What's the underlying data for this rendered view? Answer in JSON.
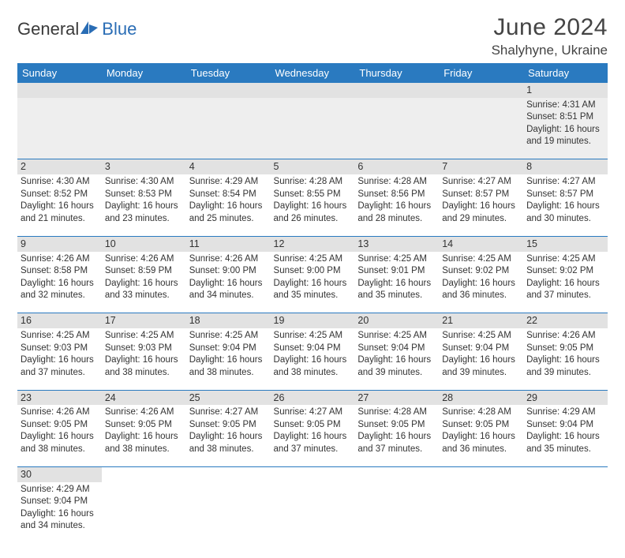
{
  "brand": {
    "part1": "General",
    "part2": "Blue"
  },
  "title": "June 2024",
  "location": "Shalyhyne, Ukraine",
  "colors": {
    "header_bg": "#2a7ac0",
    "header_fg": "#ffffff",
    "daynum_bg": "#e2e2e2",
    "rule": "#2a7ac0",
    "brand_blue": "#2a6db5"
  },
  "weekdays": [
    "Sunday",
    "Monday",
    "Tuesday",
    "Wednesday",
    "Thursday",
    "Friday",
    "Saturday"
  ],
  "weeks": [
    [
      null,
      null,
      null,
      null,
      null,
      null,
      {
        "n": "1",
        "sr": "Sunrise: 4:31 AM",
        "ss": "Sunset: 8:51 PM",
        "d1": "Daylight: 16 hours",
        "d2": "and 19 minutes."
      }
    ],
    [
      {
        "n": "2",
        "sr": "Sunrise: 4:30 AM",
        "ss": "Sunset: 8:52 PM",
        "d1": "Daylight: 16 hours",
        "d2": "and 21 minutes."
      },
      {
        "n": "3",
        "sr": "Sunrise: 4:30 AM",
        "ss": "Sunset: 8:53 PM",
        "d1": "Daylight: 16 hours",
        "d2": "and 23 minutes."
      },
      {
        "n": "4",
        "sr": "Sunrise: 4:29 AM",
        "ss": "Sunset: 8:54 PM",
        "d1": "Daylight: 16 hours",
        "d2": "and 25 minutes."
      },
      {
        "n": "5",
        "sr": "Sunrise: 4:28 AM",
        "ss": "Sunset: 8:55 PM",
        "d1": "Daylight: 16 hours",
        "d2": "and 26 minutes."
      },
      {
        "n": "6",
        "sr": "Sunrise: 4:28 AM",
        "ss": "Sunset: 8:56 PM",
        "d1": "Daylight: 16 hours",
        "d2": "and 28 minutes."
      },
      {
        "n": "7",
        "sr": "Sunrise: 4:27 AM",
        "ss": "Sunset: 8:57 PM",
        "d1": "Daylight: 16 hours",
        "d2": "and 29 minutes."
      },
      {
        "n": "8",
        "sr": "Sunrise: 4:27 AM",
        "ss": "Sunset: 8:57 PM",
        "d1": "Daylight: 16 hours",
        "d2": "and 30 minutes."
      }
    ],
    [
      {
        "n": "9",
        "sr": "Sunrise: 4:26 AM",
        "ss": "Sunset: 8:58 PM",
        "d1": "Daylight: 16 hours",
        "d2": "and 32 minutes."
      },
      {
        "n": "10",
        "sr": "Sunrise: 4:26 AM",
        "ss": "Sunset: 8:59 PM",
        "d1": "Daylight: 16 hours",
        "d2": "and 33 minutes."
      },
      {
        "n": "11",
        "sr": "Sunrise: 4:26 AM",
        "ss": "Sunset: 9:00 PM",
        "d1": "Daylight: 16 hours",
        "d2": "and 34 minutes."
      },
      {
        "n": "12",
        "sr": "Sunrise: 4:25 AM",
        "ss": "Sunset: 9:00 PM",
        "d1": "Daylight: 16 hours",
        "d2": "and 35 minutes."
      },
      {
        "n": "13",
        "sr": "Sunrise: 4:25 AM",
        "ss": "Sunset: 9:01 PM",
        "d1": "Daylight: 16 hours",
        "d2": "and 35 minutes."
      },
      {
        "n": "14",
        "sr": "Sunrise: 4:25 AM",
        "ss": "Sunset: 9:02 PM",
        "d1": "Daylight: 16 hours",
        "d2": "and 36 minutes."
      },
      {
        "n": "15",
        "sr": "Sunrise: 4:25 AM",
        "ss": "Sunset: 9:02 PM",
        "d1": "Daylight: 16 hours",
        "d2": "and 37 minutes."
      }
    ],
    [
      {
        "n": "16",
        "sr": "Sunrise: 4:25 AM",
        "ss": "Sunset: 9:03 PM",
        "d1": "Daylight: 16 hours",
        "d2": "and 37 minutes."
      },
      {
        "n": "17",
        "sr": "Sunrise: 4:25 AM",
        "ss": "Sunset: 9:03 PM",
        "d1": "Daylight: 16 hours",
        "d2": "and 38 minutes."
      },
      {
        "n": "18",
        "sr": "Sunrise: 4:25 AM",
        "ss": "Sunset: 9:04 PM",
        "d1": "Daylight: 16 hours",
        "d2": "and 38 minutes."
      },
      {
        "n": "19",
        "sr": "Sunrise: 4:25 AM",
        "ss": "Sunset: 9:04 PM",
        "d1": "Daylight: 16 hours",
        "d2": "and 38 minutes."
      },
      {
        "n": "20",
        "sr": "Sunrise: 4:25 AM",
        "ss": "Sunset: 9:04 PM",
        "d1": "Daylight: 16 hours",
        "d2": "and 39 minutes."
      },
      {
        "n": "21",
        "sr": "Sunrise: 4:25 AM",
        "ss": "Sunset: 9:04 PM",
        "d1": "Daylight: 16 hours",
        "d2": "and 39 minutes."
      },
      {
        "n": "22",
        "sr": "Sunrise: 4:26 AM",
        "ss": "Sunset: 9:05 PM",
        "d1": "Daylight: 16 hours",
        "d2": "and 39 minutes."
      }
    ],
    [
      {
        "n": "23",
        "sr": "Sunrise: 4:26 AM",
        "ss": "Sunset: 9:05 PM",
        "d1": "Daylight: 16 hours",
        "d2": "and 38 minutes."
      },
      {
        "n": "24",
        "sr": "Sunrise: 4:26 AM",
        "ss": "Sunset: 9:05 PM",
        "d1": "Daylight: 16 hours",
        "d2": "and 38 minutes."
      },
      {
        "n": "25",
        "sr": "Sunrise: 4:27 AM",
        "ss": "Sunset: 9:05 PM",
        "d1": "Daylight: 16 hours",
        "d2": "and 38 minutes."
      },
      {
        "n": "26",
        "sr": "Sunrise: 4:27 AM",
        "ss": "Sunset: 9:05 PM",
        "d1": "Daylight: 16 hours",
        "d2": "and 37 minutes."
      },
      {
        "n": "27",
        "sr": "Sunrise: 4:28 AM",
        "ss": "Sunset: 9:05 PM",
        "d1": "Daylight: 16 hours",
        "d2": "and 37 minutes."
      },
      {
        "n": "28",
        "sr": "Sunrise: 4:28 AM",
        "ss": "Sunset: 9:05 PM",
        "d1": "Daylight: 16 hours",
        "d2": "and 36 minutes."
      },
      {
        "n": "29",
        "sr": "Sunrise: 4:29 AM",
        "ss": "Sunset: 9:04 PM",
        "d1": "Daylight: 16 hours",
        "d2": "and 35 minutes."
      }
    ],
    [
      {
        "n": "30",
        "sr": "Sunrise: 4:29 AM",
        "ss": "Sunset: 9:04 PM",
        "d1": "Daylight: 16 hours",
        "d2": "and 34 minutes."
      },
      null,
      null,
      null,
      null,
      null,
      null
    ]
  ]
}
